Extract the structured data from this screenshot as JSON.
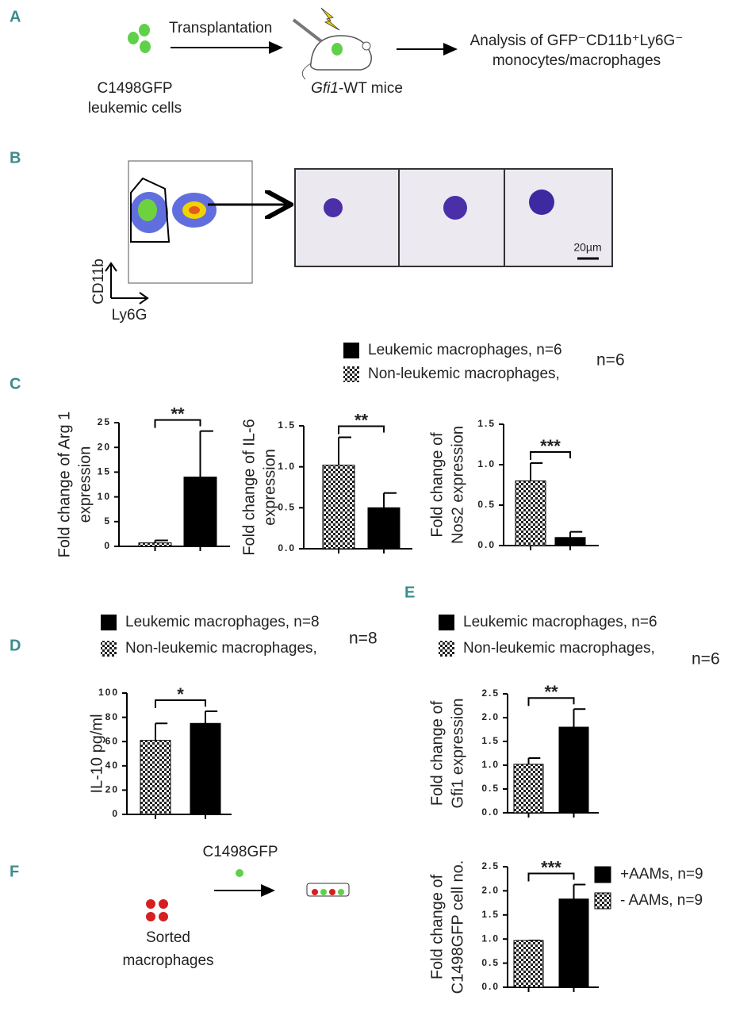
{
  "panels": {
    "a": "A",
    "b": "B",
    "c": "C",
    "d": "D",
    "e": "E",
    "f": "F"
  },
  "diagram_a": {
    "arrow_label": "Transplantation",
    "source": [
      "C1498GFP",
      "leukemic cells"
    ],
    "host_italic": "Gfi1",
    "host_rest": "-WT mice",
    "analysis": [
      "Analysis of GFP⁻CD11b⁺Ly6G⁻",
      "monocytes/macrophages"
    ]
  },
  "diagram_b": {
    "y_axis": "CD11b",
    "x_axis": "Ly6G",
    "scale": "20µm"
  },
  "legend_c": {
    "entries": [
      {
        "label": "Leukemic macrophages, n=6",
        "fill": "black"
      },
      {
        "label": "Non-leukemic macrophages,",
        "fill": "checkered"
      }
    ],
    "note": "n=6"
  },
  "legend_d": {
    "entries": [
      {
        "label": "Leukemic macrophages, n=8",
        "fill": "black"
      },
      {
        "label": "Non-leukemic macrophages,",
        "fill": "checkered"
      }
    ],
    "note": "n=8"
  },
  "legend_e": {
    "entries": [
      {
        "label": "Leukemic macrophages, n=6",
        "fill": "black"
      },
      {
        "label": "Non-leukemic macrophages,",
        "fill": "checkered"
      }
    ],
    "note": "n=6"
  },
  "diagram_f": {
    "cells": [
      "Sorted",
      "macrophages"
    ],
    "added": "C1498GFP"
  },
  "chart_data": [
    {
      "type": "bar",
      "ylabel": [
        "Fold change of Arg 1",
        "expression"
      ],
      "values": [
        0.7,
        14
      ],
      "errors": [
        0.5,
        9.3
      ],
      "fills": [
        "checkered",
        "black"
      ],
      "annotation": "**",
      "ylim": [
        0,
        25
      ],
      "yticks": [
        0,
        5,
        10,
        15,
        20,
        25
      ]
    },
    {
      "type": "bar",
      "ylabel": [
        "Fold change of IL-6",
        "expression"
      ],
      "values": [
        1.02,
        0.5
      ],
      "errors": [
        0.34,
        0.18
      ],
      "fills": [
        "checkered",
        "black"
      ],
      "annotation": "**",
      "ylim": [
        0,
        1.5
      ],
      "yticks": [
        {
          "value": 0,
          "label": "0.0"
        },
        {
          "value": 0.5,
          "label": "0.5"
        },
        {
          "value": 1,
          "label": "1.0"
        },
        {
          "value": 1.5,
          "label": "1.5"
        }
      ]
    },
    {
      "type": "bar",
      "ylabel": [
        "Fold change of",
        "Nos2 expression"
      ],
      "values": [
        0.8,
        0.1
      ],
      "errors": [
        0.22,
        0.07
      ],
      "fills": [
        "checkered",
        "black"
      ],
      "annotation": "***",
      "ylim": [
        0,
        1.5
      ],
      "yticks": [
        {
          "value": 0,
          "label": "0.0"
        },
        {
          "value": 0.5,
          "label": "0.5"
        },
        {
          "value": 1,
          "label": "1.0"
        },
        {
          "value": 1.5,
          "label": "1.5"
        }
      ]
    },
    {
      "type": "bar",
      "ylabel": [
        "IL-10 pg/ml"
      ],
      "values": [
        61,
        75
      ],
      "errors": [
        14,
        10
      ],
      "fills": [
        "checkered",
        "black"
      ],
      "annotation": "*",
      "ylim": [
        0,
        100
      ],
      "yticks": [
        0,
        20,
        40,
        60,
        80,
        100
      ]
    },
    {
      "type": "bar",
      "ylabel": [
        "Fold change of",
        "Gfi1 expression"
      ],
      "values": [
        1.02,
        1.8
      ],
      "errors": [
        0.13,
        0.38
      ],
      "fills": [
        "checkered",
        "black"
      ],
      "annotation": "**",
      "ylim": [
        0,
        2.5
      ],
      "yticks": [
        {
          "value": 0,
          "label": "0.0"
        },
        {
          "value": 0.5,
          "label": "0.5"
        },
        {
          "value": 1,
          "label": "1.0"
        },
        {
          "value": 1.5,
          "label": "1.5"
        },
        {
          "value": 2,
          "label": "2.0"
        },
        {
          "value": 2.5,
          "label": "2.5"
        }
      ]
    },
    {
      "type": "bar",
      "ylabel": [
        "Fold change of",
        "C1498GFP cell no."
      ],
      "values": [
        0.97,
        1.83
      ],
      "errors": [
        0,
        0.3
      ],
      "fills": [
        "checkered",
        "black"
      ],
      "annotation": "***",
      "ylim": [
        0,
        2.5
      ],
      "yticks": [
        {
          "value": 0,
          "label": "0.0"
        },
        {
          "value": 0.5,
          "label": "0.5"
        },
        {
          "value": 1,
          "label": "1.0"
        },
        {
          "value": 1.5,
          "label": "1.5"
        },
        {
          "value": 2,
          "label": "2.0"
        },
        {
          "value": 2.5,
          "label": "2.5"
        }
      ],
      "legend": [
        {
          "label": "+AAMs, n=9",
          "fill": "black"
        },
        {
          "label": "- AAMs, n=9",
          "fill": "checkered"
        }
      ]
    }
  ]
}
